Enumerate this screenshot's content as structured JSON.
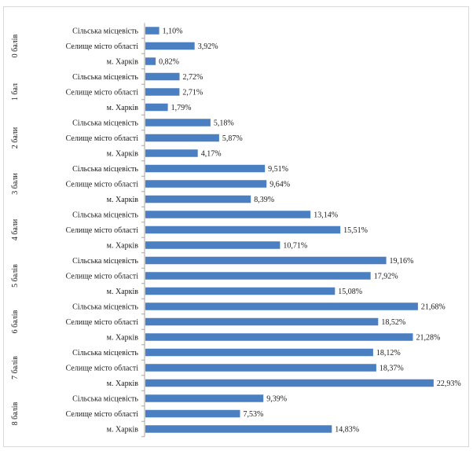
{
  "chart_data": {
    "type": "bar",
    "orientation": "horizontal",
    "unit": "%",
    "bar_color": "#4a7fc1",
    "axis_color": "#a6a6a6",
    "frame_color": "#d9d9d9",
    "text_color": "#1a1a1a",
    "grid": false,
    "legend": "none",
    "xlim": [
      0,
      24
    ],
    "groups": [
      {
        "label": "0 балів",
        "items": [
          {
            "category": "Сільська місцевість",
            "value": 1.1,
            "value_label": "1,10%"
          },
          {
            "category": "Селище місто області",
            "value": 3.92,
            "value_label": "3,92%"
          },
          {
            "category": "м. Харків",
            "value": 0.82,
            "value_label": "0,82%"
          }
        ]
      },
      {
        "label": "1 бал",
        "items": [
          {
            "category": "Сільська місцевість",
            "value": 2.72,
            "value_label": "2,72%"
          },
          {
            "category": "Селище місто області",
            "value": 2.71,
            "value_label": "2,71%"
          },
          {
            "category": "м. Харків",
            "value": 1.79,
            "value_label": "1,79%"
          }
        ]
      },
      {
        "label": "2 бали",
        "items": [
          {
            "category": "Сільська місцевість",
            "value": 5.18,
            "value_label": "5,18%"
          },
          {
            "category": "Селище місто області",
            "value": 5.87,
            "value_label": "5,87%"
          },
          {
            "category": "м. Харків",
            "value": 4.17,
            "value_label": "4,17%"
          }
        ]
      },
      {
        "label": "3 бали",
        "items": [
          {
            "category": "Сільська місцевість",
            "value": 9.51,
            "value_label": "9,51%"
          },
          {
            "category": "Селище місто області",
            "value": 9.64,
            "value_label": "9,64%"
          },
          {
            "category": "м. Харків",
            "value": 8.39,
            "value_label": "8,39%"
          }
        ]
      },
      {
        "label": "4 бали",
        "items": [
          {
            "category": "Сільська місцевість",
            "value": 13.14,
            "value_label": "13,14%"
          },
          {
            "category": "Селище місто області",
            "value": 15.51,
            "value_label": "15,51%"
          },
          {
            "category": "м. Харків",
            "value": 10.71,
            "value_label": "10,71%"
          }
        ]
      },
      {
        "label": "5 балів",
        "items": [
          {
            "category": "Сільська місцевість",
            "value": 19.16,
            "value_label": "19,16%"
          },
          {
            "category": "Селище місто області",
            "value": 17.92,
            "value_label": "17,92%"
          },
          {
            "category": "м. Харків",
            "value": 15.08,
            "value_label": "15,08%"
          }
        ]
      },
      {
        "label": "6 балів",
        "items": [
          {
            "category": "Сільська місцевість",
            "value": 21.68,
            "value_label": "21,68%"
          },
          {
            "category": "Селище місто області",
            "value": 18.52,
            "value_label": "18,52%"
          },
          {
            "category": "м. Харків",
            "value": 21.28,
            "value_label": "21,28%"
          }
        ]
      },
      {
        "label": "7 балів",
        "items": [
          {
            "category": "Сільська місцевість",
            "value": 18.12,
            "value_label": "18,12%"
          },
          {
            "category": "Селище місто області",
            "value": 18.37,
            "value_label": "18,37%"
          },
          {
            "category": "м. Харків",
            "value": 22.93,
            "value_label": "22,93%"
          }
        ]
      },
      {
        "label": "8 балів",
        "items": [
          {
            "category": "Сільська місцевість",
            "value": 9.39,
            "value_label": "9,39%"
          },
          {
            "category": "Селище місто області",
            "value": 7.53,
            "value_label": "7,53%"
          },
          {
            "category": "м. Харків",
            "value": 14.83,
            "value_label": "14,83%"
          }
        ]
      }
    ]
  }
}
